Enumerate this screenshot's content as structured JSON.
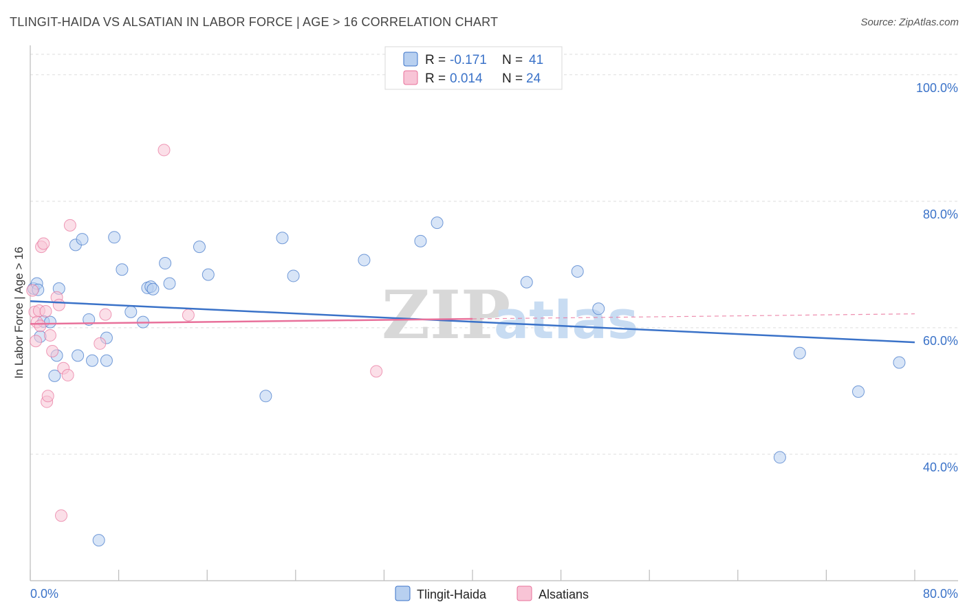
{
  "title": "TLINGIT-HAIDA VS ALSATIAN IN LABOR FORCE | AGE > 16 CORRELATION CHART",
  "source": "Source: ZipAtlas.com",
  "colors": {
    "blue": "#3a72c8",
    "blue_fill": "#b8d0f0",
    "pink": "#e8709a",
    "pink_fill": "#f8c4d6",
    "grid": "#dddddd"
  },
  "legend": {
    "r_label": "R =",
    "n_label": "N =",
    "series": [
      {
        "r": "-0.171",
        "n": "41"
      },
      {
        "r": "0.014",
        "n": "24"
      }
    ]
  },
  "watermark": {
    "zip": "ZIP",
    "atlas": "atlas"
  },
  "chart_data": {
    "type": "scatter",
    "title": "TLINGIT-HAIDA VS ALSATIAN IN LABOR FORCE | AGE > 16 CORRELATION CHART",
    "xlabel": "",
    "ylabel": "In Labor Force | Age > 16",
    "xlim": [
      0,
      80
    ],
    "ylim": [
      20,
      104
    ],
    "x_tick_labels": [
      "0.0%",
      "80.0%"
    ],
    "y_ticks": [
      100,
      80,
      60,
      40
    ],
    "y_tick_labels": [
      "100.0%",
      "80.0%",
      "60.0%",
      "40.0%"
    ],
    "legend_position": "top-center",
    "series": [
      {
        "name": "Tlingit-Haida",
        "color": "blue",
        "r": -0.171,
        "n": 41,
        "trend": {
          "x": [
            0,
            80
          ],
          "y": [
            64.2,
            57.7
          ],
          "dashed_from": null
        },
        "points": [
          [
            0.3,
            66.2
          ],
          [
            0.6,
            67.0
          ],
          [
            0.9,
            58.6
          ],
          [
            1.2,
            61.0
          ],
          [
            1.8,
            60.9
          ],
          [
            2.2,
            52.4
          ],
          [
            2.4,
            55.6
          ],
          [
            2.6,
            66.2
          ],
          [
            4.1,
            73.1
          ],
          [
            4.3,
            55.6
          ],
          [
            4.7,
            74.0
          ],
          [
            5.3,
            61.3
          ],
          [
            5.6,
            54.8
          ],
          [
            6.2,
            26.4
          ],
          [
            6.9,
            58.4
          ],
          [
            6.9,
            54.8
          ],
          [
            7.6,
            74.3
          ],
          [
            8.3,
            69.2
          ],
          [
            9.1,
            62.5
          ],
          [
            10.2,
            60.9
          ],
          [
            10.6,
            66.3
          ],
          [
            10.9,
            66.5
          ],
          [
            11.1,
            66.1
          ],
          [
            12.2,
            70.2
          ],
          [
            12.6,
            67.0
          ],
          [
            15.3,
            72.8
          ],
          [
            16.1,
            68.4
          ],
          [
            21.3,
            49.2
          ],
          [
            22.8,
            74.2
          ],
          [
            23.8,
            68.2
          ],
          [
            30.2,
            70.7
          ],
          [
            35.3,
            73.7
          ],
          [
            36.8,
            76.6
          ],
          [
            44.9,
            67.2
          ],
          [
            49.5,
            68.9
          ],
          [
            51.4,
            63.0
          ],
          [
            67.8,
            39.5
          ],
          [
            69.6,
            56.0
          ],
          [
            74.9,
            49.9
          ],
          [
            78.6,
            54.5
          ],
          [
            0.7,
            66.0
          ]
        ]
      },
      {
        "name": "Alsatians",
        "color": "pink",
        "r": 0.014,
        "n": 24,
        "trend": {
          "x": [
            0,
            40,
            80
          ],
          "y": [
            60.6,
            61.4,
            62.2
          ],
          "dashed_from": 40
        },
        "points": [
          [
            0.2,
            65.9
          ],
          [
            0.4,
            62.5
          ],
          [
            0.5,
            57.9
          ],
          [
            0.6,
            60.9
          ],
          [
            0.8,
            62.7
          ],
          [
            1.0,
            72.8
          ],
          [
            1.2,
            73.3
          ],
          [
            1.4,
            62.6
          ],
          [
            1.5,
            48.3
          ],
          [
            1.6,
            49.2
          ],
          [
            1.8,
            58.8
          ],
          [
            2.0,
            56.3
          ],
          [
            2.4,
            64.8
          ],
          [
            2.6,
            63.6
          ],
          [
            2.8,
            30.3
          ],
          [
            3.0,
            53.6
          ],
          [
            3.4,
            52.5
          ],
          [
            3.6,
            76.2
          ],
          [
            6.3,
            57.5
          ],
          [
            6.8,
            62.1
          ],
          [
            12.1,
            88.1
          ],
          [
            14.3,
            62.0
          ],
          [
            31.3,
            53.1
          ],
          [
            0.9,
            60.3
          ]
        ]
      }
    ]
  }
}
